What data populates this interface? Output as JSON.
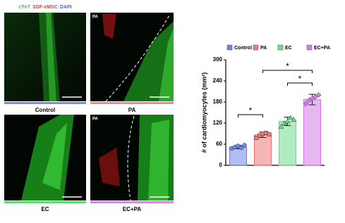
{
  "figure": {
    "stain_legend": [
      {
        "text": "cTnT",
        "color": "#2fd02f"
      },
      {
        "text": "SDF-eMSC",
        "color": "#ff3030"
      },
      {
        "text": "DAPI",
        "color": "#4a5cff"
      }
    ],
    "panels": [
      {
        "label": "Control",
        "color": "#7b8fe0"
      },
      {
        "label": "PA",
        "inset": "PA",
        "color": "#f08a8a"
      },
      {
        "label": "EC",
        "color": "#5fdc7a"
      },
      {
        "label": "EC+PA",
        "inset": "PA",
        "color": "#d48be0"
      }
    ]
  },
  "chart_data": {
    "type": "bar",
    "y_label": "# of cardiomyocytes (mm²)",
    "categories": [
      "Control",
      "PA",
      "EC",
      "EC+PA"
    ],
    "values": [
      52,
      87,
      125,
      187
    ],
    "errors": [
      5,
      8,
      12,
      15
    ],
    "points": [
      [
        48,
        52,
        55,
        50,
        57
      ],
      [
        78,
        85,
        90,
        92,
        88
      ],
      [
        110,
        120,
        125,
        135,
        130
      ],
      [
        175,
        185,
        190,
        195,
        200
      ]
    ],
    "colors": [
      "#6f86e8",
      "#f07a7a",
      "#6fdc86",
      "#d27ee6"
    ],
    "ylim": [
      0,
      300
    ],
    "yticks": [
      0,
      60,
      120,
      180,
      240,
      300
    ],
    "brackets": [
      {
        "label": "*",
        "categories": [
          0,
          1
        ],
        "value": 144
      },
      {
        "label": "*",
        "categories": [
          1,
          3
        ],
        "value": 270
      },
      {
        "label": "*",
        "categories": [
          2,
          3
        ],
        "value": 234
      }
    ],
    "legend": "top"
  }
}
